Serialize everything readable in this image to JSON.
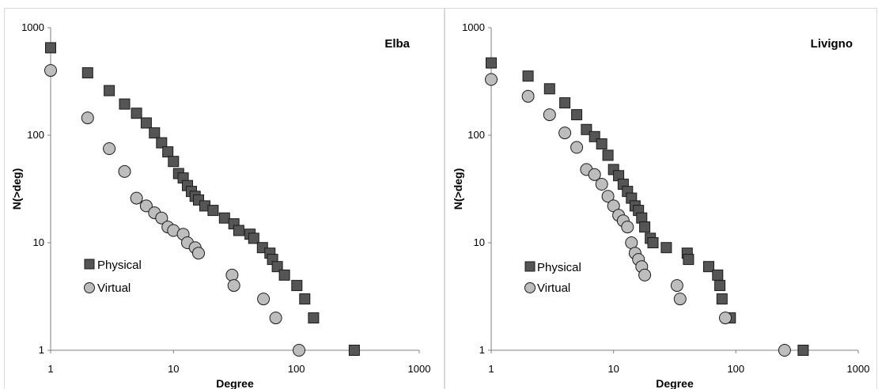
{
  "colors": {
    "physical_fill": "#555555",
    "virtual_fill": "#bdbdbd",
    "marker_stroke": "#1a1a1a",
    "axis": "#808080",
    "panel_border": "#d9d9d9"
  },
  "chart_data": [
    {
      "type": "scatter",
      "title": "Elba",
      "xlabel": "Degree",
      "ylabel": "N(>deg)",
      "xscale": "log",
      "yscale": "log",
      "xlim": [
        1,
        1000
      ],
      "ylim": [
        1,
        1000
      ],
      "x_ticks": [
        "1",
        "10",
        "100",
        "1000"
      ],
      "y_ticks": [
        "1",
        "10",
        "100",
        "1000"
      ],
      "grid": false,
      "legend_position": "bottom-left",
      "series": [
        {
          "name": "Physical",
          "marker": "square",
          "points": [
            [
              1,
              650
            ],
            [
              2,
              380
            ],
            [
              3,
              260
            ],
            [
              4,
              195
            ],
            [
              5,
              160
            ],
            [
              6,
              130
            ],
            [
              7,
              105
            ],
            [
              8,
              85
            ],
            [
              9,
              70
            ],
            [
              10,
              57
            ],
            [
              11,
              44
            ],
            [
              12,
              40
            ],
            [
              13,
              34
            ],
            [
              14,
              30
            ],
            [
              15,
              27
            ],
            [
              16,
              25
            ],
            [
              18,
              22
            ],
            [
              21,
              20
            ],
            [
              26,
              17
            ],
            [
              31,
              15
            ],
            [
              34,
              13
            ],
            [
              42,
              12
            ],
            [
              45,
              11
            ],
            [
              53,
              9
            ],
            [
              61,
              8
            ],
            [
              64,
              7
            ],
            [
              70,
              6
            ],
            [
              80,
              5
            ],
            [
              101,
              4
            ],
            [
              117,
              3
            ],
            [
              138,
              2
            ],
            [
              296,
              1
            ]
          ]
        },
        {
          "name": "Virtual",
          "marker": "circle",
          "points": [
            [
              1,
              400
            ],
            [
              2,
              145
            ],
            [
              3,
              75
            ],
            [
              4,
              46
            ],
            [
              5,
              26
            ],
            [
              6,
              22
            ],
            [
              7,
              19
            ],
            [
              8,
              17
            ],
            [
              9,
              14
            ],
            [
              10,
              13
            ],
            [
              12,
              12
            ],
            [
              13,
              10
            ],
            [
              15,
              9
            ],
            [
              16,
              8
            ],
            [
              30,
              5
            ],
            [
              31,
              4
            ],
            [
              54,
              3
            ],
            [
              68,
              2
            ],
            [
              105,
              1
            ]
          ]
        }
      ]
    },
    {
      "type": "scatter",
      "title": "Livigno",
      "xlabel": "Degree",
      "ylabel": "N(>deg)",
      "xscale": "log",
      "yscale": "log",
      "xlim": [
        1,
        1000
      ],
      "ylim": [
        1,
        1000
      ],
      "x_ticks": [
        "1",
        "10",
        "100",
        "1000"
      ],
      "y_ticks": [
        "1",
        "10",
        "100",
        "1000"
      ],
      "grid": false,
      "legend_position": "bottom-left",
      "series": [
        {
          "name": "Physical",
          "marker": "square",
          "points": [
            [
              1,
              470
            ],
            [
              2,
              355
            ],
            [
              3,
              270
            ],
            [
              4,
              200
            ],
            [
              5,
              155
            ],
            [
              6,
              113
            ],
            [
              7,
              97
            ],
            [
              8,
              83
            ],
            [
              9,
              65
            ],
            [
              10,
              48
            ],
            [
              11,
              42
            ],
            [
              12,
              35
            ],
            [
              13,
              30
            ],
            [
              14,
              26
            ],
            [
              15,
              22
            ],
            [
              16,
              20
            ],
            [
              17,
              17
            ],
            [
              18,
              14
            ],
            [
              20,
              11
            ],
            [
              21,
              10
            ],
            [
              27,
              9
            ],
            [
              40,
              8
            ],
            [
              41,
              7
            ],
            [
              60,
              6
            ],
            [
              71,
              5
            ],
            [
              74,
              4
            ],
            [
              77,
              3
            ],
            [
              90,
              2
            ],
            [
              355,
              1
            ]
          ]
        },
        {
          "name": "Virtual",
          "marker": "circle",
          "points": [
            [
              1,
              330
            ],
            [
              2,
              230
            ],
            [
              3,
              155
            ],
            [
              4,
              105
            ],
            [
              5,
              77
            ],
            [
              6,
              48
            ],
            [
              7,
              43
            ],
            [
              8,
              35
            ],
            [
              9,
              27
            ],
            [
              10,
              22
            ],
            [
              11,
              18
            ],
            [
              12,
              16
            ],
            [
              13,
              14
            ],
            [
              14,
              10
            ],
            [
              15,
              8
            ],
            [
              16,
              7
            ],
            [
              17,
              6
            ],
            [
              18,
              5
            ],
            [
              33,
              4
            ],
            [
              35,
              3
            ],
            [
              82,
              2
            ],
            [
              250,
              1
            ]
          ]
        }
      ]
    }
  ]
}
